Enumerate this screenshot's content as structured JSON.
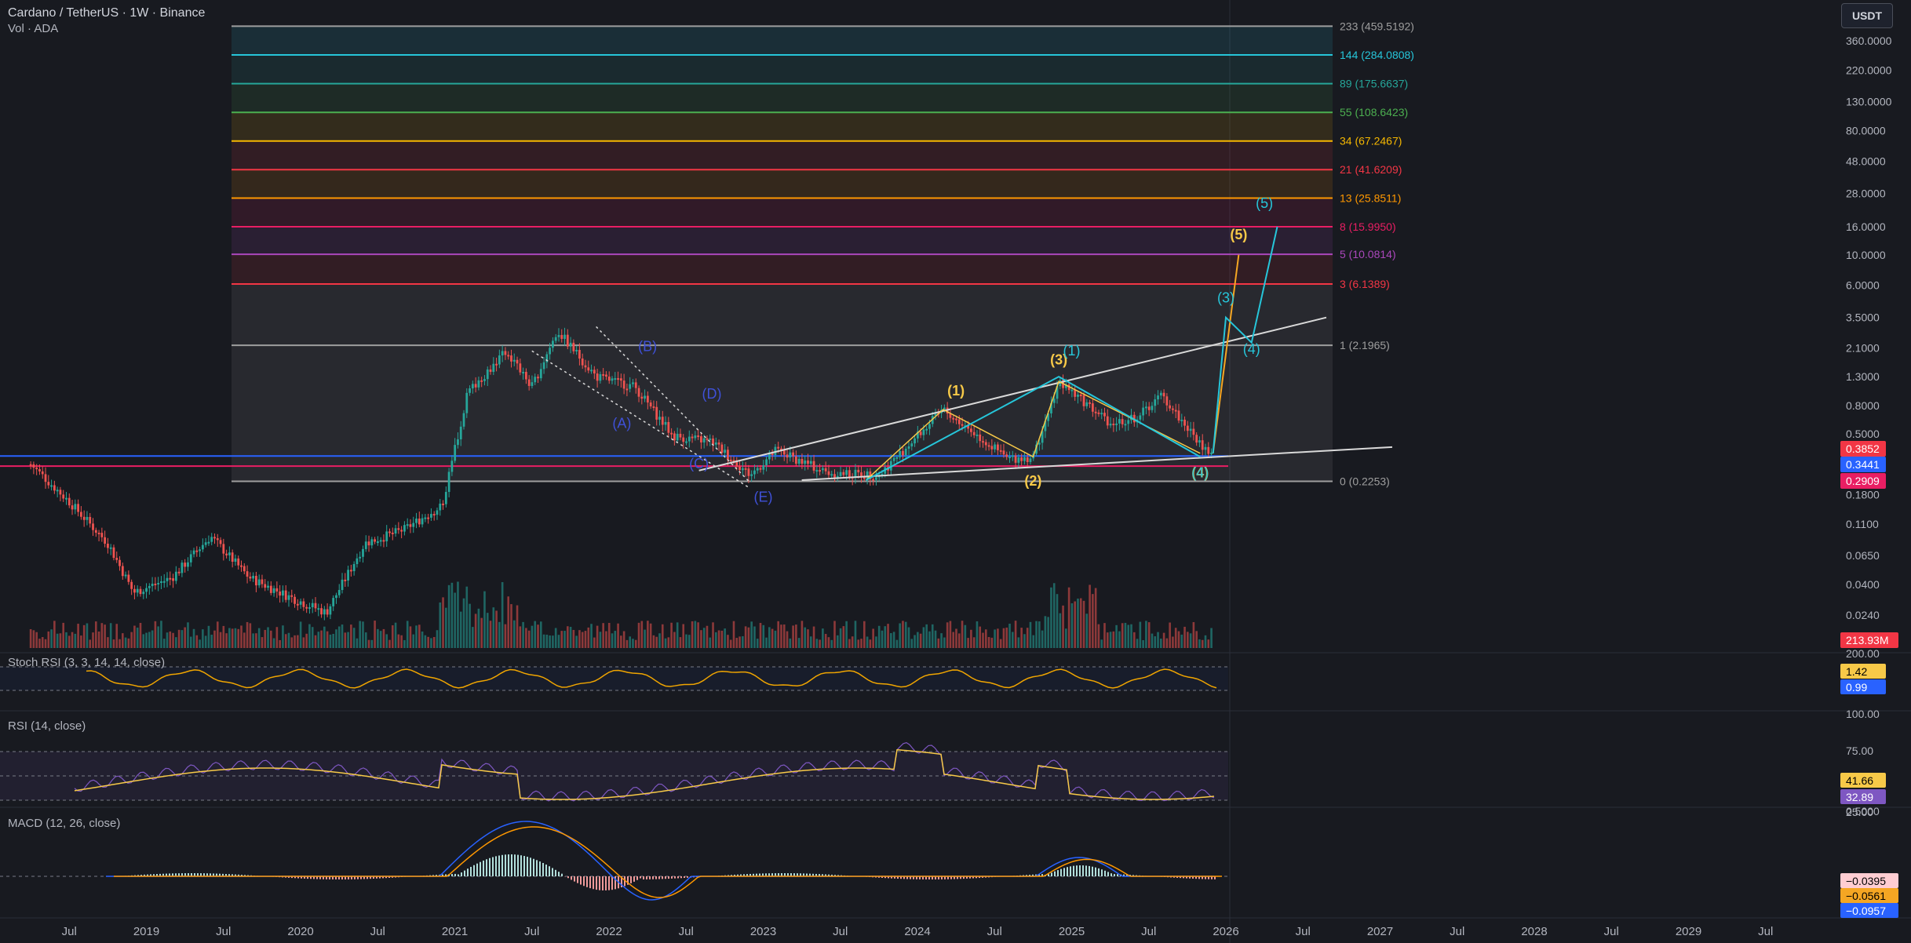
{
  "header": {
    "symbol_line": "Cardano / TetherUS · 1W · Binance",
    "volume_line": "Vol · ADA",
    "currency_button": "USDT"
  },
  "colors": {
    "background": "#181a20",
    "up": "#26a69a",
    "down": "#ef5350",
    "fib_range_bg": "#2a2d37",
    "white_line": "#d9d9d9",
    "blue_hline": "#2962ff",
    "pink_hline": "#e91e63",
    "yellow_wave": "#f7c948",
    "teal_wave": "#26c6da",
    "abcde_label": "#3f51d8",
    "stoch_line": "#f0a500",
    "rsi_line": "#7e57c2",
    "rsi_ma": "#f7c948",
    "macd_line": "#2962ff",
    "signal_line": "#ff9800"
  },
  "chart_data": {
    "type": "candlestick",
    "title": "Cardano / TetherUS · 1W · Binance",
    "y_scale": "log",
    "price_axis_ticks": [
      "360.0000",
      "220.0000",
      "130.0000",
      "80.0000",
      "48.0000",
      "28.0000",
      "16.0000",
      "10.0000",
      "6.0000",
      "3.5000",
      "2.1000",
      "1.3000",
      "0.8000",
      "0.5000",
      "0.1800",
      "0.1100",
      "0.0650",
      "0.0400",
      "0.0240"
    ],
    "price_badges": [
      {
        "value": "0.3852",
        "color": "#f23645"
      },
      {
        "value": "0.3441",
        "color": "#2962ff"
      },
      {
        "value": "0.2909",
        "color": "#e91e63"
      }
    ],
    "volume_badge": "213.93M",
    "time_axis": [
      "Jul",
      "2019",
      "Jul",
      "2020",
      "Jul",
      "2021",
      "Jul",
      "2022",
      "Jul",
      "2023",
      "Jul",
      "2024",
      "Jul",
      "2025",
      "Jul",
      "2026",
      "Jul",
      "2027",
      "Jul",
      "2028",
      "Jul",
      "2029",
      "Jul"
    ],
    "price_path": [
      {
        "t": "2018-04",
        "p": 0.3
      },
      {
        "t": "2018-07",
        "p": 0.16
      },
      {
        "t": "2018-10",
        "p": 0.08
      },
      {
        "t": "2018-12",
        "p": 0.035
      },
      {
        "t": "2019-03",
        "p": 0.045
      },
      {
        "t": "2019-06",
        "p": 0.09
      },
      {
        "t": "2019-09",
        "p": 0.045
      },
      {
        "t": "2019-12",
        "p": 0.033
      },
      {
        "t": "2020-03",
        "p": 0.025
      },
      {
        "t": "2020-06",
        "p": 0.08
      },
      {
        "t": "2020-09",
        "p": 0.1
      },
      {
        "t": "2020-12",
        "p": 0.15
      },
      {
        "t": "2021-02",
        "p": 1.0
      },
      {
        "t": "2021-05",
        "p": 2.0
      },
      {
        "t": "2021-07",
        "p": 1.1
      },
      {
        "t": "2021-09",
        "p": 2.8
      },
      {
        "t": "2021-12",
        "p": 1.3
      },
      {
        "t": "2022-03",
        "p": 1.1
      },
      {
        "t": "2022-06",
        "p": 0.48
      },
      {
        "t": "2022-09",
        "p": 0.44
      },
      {
        "t": "2022-12",
        "p": 0.25
      },
      {
        "t": "2023-02",
        "p": 0.38
      },
      {
        "t": "2023-06",
        "p": 0.26
      },
      {
        "t": "2023-10",
        "p": 0.25
      },
      {
        "t": "2024-03",
        "p": 0.75
      },
      {
        "t": "2024-08",
        "p": 0.33
      },
      {
        "t": "2024-10",
        "p": 0.34
      },
      {
        "t": "2024-12",
        "p": 1.2
      },
      {
        "t": "2025-04",
        "p": 0.6
      },
      {
        "t": "2025-06",
        "p": 0.65
      },
      {
        "t": "2025-08",
        "p": 0.95
      },
      {
        "t": "2025-11",
        "p": 0.42
      },
      {
        "t": "2025-12",
        "p": 0.35
      }
    ],
    "fib_levels": [
      {
        "ratio": "233",
        "price": "459.5192",
        "label": "233 (459.5192)",
        "color": "#9e9e9e"
      },
      {
        "ratio": "144",
        "price": "284.0808",
        "label": "144 (284.0808)",
        "color": "#26c6da"
      },
      {
        "ratio": "89",
        "price": "175.6637",
        "label": "89 (175.6637)",
        "color": "#26a69a"
      },
      {
        "ratio": "55",
        "price": "108.6423",
        "label": "55 (108.6423)",
        "color": "#4caf50"
      },
      {
        "ratio": "34",
        "price": "67.2467",
        "label": "34 (67.2467)",
        "color": "#f5b700"
      },
      {
        "ratio": "21",
        "price": "41.6209",
        "label": "21 (41.6209)",
        "color": "#f23645"
      },
      {
        "ratio": "13",
        "price": "25.8511",
        "label": "13 (25.8511)",
        "color": "#ff9800"
      },
      {
        "ratio": "8",
        "price": "15.9950",
        "label": "8 (15.9950)",
        "color": "#e91e63"
      },
      {
        "ratio": "5",
        "price": "10.0814",
        "label": "5 (10.0814)",
        "color": "#ab47bc"
      },
      {
        "ratio": "3",
        "price": "6.1389",
        "label": "3 (6.1389)",
        "color": "#f23645"
      },
      {
        "ratio": "1",
        "price": "2.1965",
        "label": "1 (2.1965)",
        "color": "#9e9e9e"
      },
      {
        "ratio": "0",
        "price": "0.2253",
        "label": "0 (0.2253)",
        "color": "#9e9e9e"
      }
    ],
    "wave_labels": [
      {
        "text": "(B)",
        "color": "#3f51d8",
        "t": "2022-04",
        "p": 2.0
      },
      {
        "text": "(D)",
        "color": "#3f51d8",
        "t": "2022-09",
        "p": 0.9
      },
      {
        "text": "(A)",
        "color": "#3f51d8",
        "t": "2022-02",
        "p": 0.55
      },
      {
        "text": "(C)",
        "color": "#3f51d8",
        "t": "2022-08",
        "p": 0.28
      },
      {
        "text": "(E)",
        "color": "#3f51d8",
        "t": "2023-01",
        "p": 0.16
      },
      {
        "text": "(1)",
        "color": "#f7c948",
        "t": "2024-04",
        "p": 0.95
      },
      {
        "text": "(2)",
        "color": "#f7c948",
        "t": "2024-10",
        "p": 0.21
      },
      {
        "text": "(3)",
        "color": "#f7c948",
        "t": "2024-12",
        "p": 1.6
      },
      {
        "text": "(4)",
        "color": "#f7c948",
        "t": "2025-11",
        "p": 0.24
      },
      {
        "text": "(5)",
        "color": "#f7c948",
        "t": "2026-02",
        "p": 13.0
      },
      {
        "text": "(1)",
        "color": "#26c6da",
        "t": "2025-01",
        "p": 1.85
      },
      {
        "text": "(3)",
        "color": "#26c6da",
        "t": "2026-01",
        "p": 4.5
      },
      {
        "text": "(4)",
        "color": "#26c6da",
        "t": "2026-03",
        "p": 1.9
      },
      {
        "text": "(5)",
        "color": "#26c6da",
        "t": "2026-04",
        "p": 22.0
      },
      {
        "text": "(4)",
        "color": "#26c6da",
        "t": "2025-11",
        "p": 0.24
      }
    ],
    "projection_yellow": [
      {
        "t": "2025-12",
        "p": 0.36
      },
      {
        "t": "2026-02",
        "p": 10.0
      }
    ],
    "projection_teal": [
      {
        "t": "2025-12",
        "p": 0.36
      },
      {
        "t": "2026-01",
        "p": 3.5
      },
      {
        "t": "2026-03",
        "p": 2.3
      },
      {
        "t": "2026-05",
        "p": 16.0
      }
    ],
    "indicators": {
      "stoch_rsi": {
        "title": "Stoch RSI (3, 3, 14, 14, close)",
        "values": [
          "1.42",
          "0.99"
        ],
        "axis": [
          "200.00"
        ]
      },
      "rsi": {
        "title": "RSI (14, close)",
        "values": [
          "41.66",
          "32.89"
        ],
        "axis": [
          "100.00",
          "75.00",
          "25.00"
        ]
      },
      "macd": {
        "title": "MACD (12, 26, close)",
        "values": [
          "−0.0395",
          "−0.0561",
          "−0.0957"
        ],
        "axis": [
          "0.5000"
        ]
      }
    }
  }
}
